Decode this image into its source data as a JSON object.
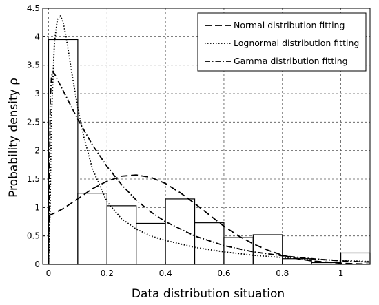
{
  "chart_data": {
    "type": "bar",
    "title": "",
    "xlabel": "Data distribution situation",
    "ylabel": "Probability density ρ",
    "xlim": [
      -0.02,
      1.1
    ],
    "ylim": [
      0,
      4.5
    ],
    "grid": true,
    "legend_position": "top-right",
    "x_ticks": [
      "0",
      "0.2",
      "0.4",
      "0.6",
      "0.8",
      "1"
    ],
    "y_ticks": [
      "0",
      "0.5",
      "1",
      "1.5",
      "2",
      "2.5",
      "3",
      "3.5",
      "4",
      "4.5"
    ],
    "histogram": {
      "bin_edges": [
        0,
        0.1,
        0.2,
        0.3,
        0.4,
        0.5,
        0.6,
        0.7,
        0.8,
        0.9,
        1.0,
        1.1
      ],
      "values": [
        3.95,
        1.25,
        1.03,
        0.72,
        1.15,
        0.73,
        0.47,
        0.52,
        0.1,
        0.03,
        0.2
      ]
    },
    "series": [
      {
        "name": "Normal distribution fitting",
        "style": "dashed",
        "x": [
          0.0,
          0.05,
          0.1,
          0.15,
          0.2,
          0.25,
          0.3,
          0.35,
          0.4,
          0.45,
          0.5,
          0.55,
          0.6,
          0.65,
          0.7,
          0.75,
          0.8,
          0.85,
          0.9,
          0.95,
          1.0,
          1.05,
          1.1
        ],
        "y": [
          0.85,
          0.98,
          1.15,
          1.33,
          1.46,
          1.55,
          1.57,
          1.53,
          1.42,
          1.26,
          1.07,
          0.87,
          0.67,
          0.5,
          0.36,
          0.25,
          0.16,
          0.1,
          0.06,
          0.04,
          0.02,
          0.01,
          0.005
        ]
      },
      {
        "name": "Lognormal distribution fitting",
        "style": "dotted",
        "x": [
          0.0,
          0.005,
          0.01,
          0.02,
          0.03,
          0.04,
          0.05,
          0.06,
          0.08,
          0.1,
          0.12,
          0.15,
          0.2,
          0.25,
          0.3,
          0.35,
          0.4,
          0.5,
          0.6,
          0.7,
          0.8,
          0.9,
          1.0,
          1.1
        ],
        "y": [
          0.0,
          0.9,
          2.6,
          3.9,
          4.3,
          4.38,
          4.25,
          4.0,
          3.35,
          2.75,
          2.25,
          1.68,
          1.1,
          0.8,
          0.62,
          0.5,
          0.42,
          0.3,
          0.22,
          0.16,
          0.12,
          0.09,
          0.07,
          0.05
        ]
      },
      {
        "name": "Gamma distribution fitting",
        "style": "dashdot",
        "x": [
          0.0,
          0.003,
          0.006,
          0.01,
          0.015,
          0.02,
          0.03,
          0.05,
          0.08,
          0.1,
          0.15,
          0.2,
          0.25,
          0.3,
          0.35,
          0.4,
          0.5,
          0.6,
          0.7,
          0.8,
          0.9,
          1.0,
          1.1
        ],
        "y": [
          0.0,
          1.6,
          2.9,
          3.3,
          3.38,
          3.35,
          3.25,
          3.05,
          2.75,
          2.55,
          2.1,
          1.72,
          1.4,
          1.13,
          0.92,
          0.75,
          0.5,
          0.33,
          0.22,
          0.15,
          0.1,
          0.06,
          0.04
        ]
      }
    ]
  }
}
